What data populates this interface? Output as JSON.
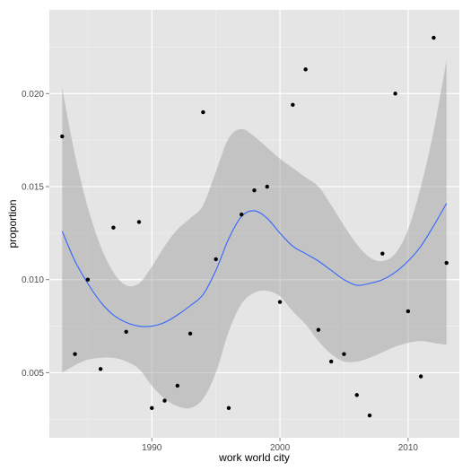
{
  "chart_data": {
    "type": "scatter",
    "title": "",
    "xlabel": "work world city",
    "ylabel": "proportion",
    "xlim": [
      1982.0,
      2014.0
    ],
    "ylim": [
      0.0015,
      0.0245
    ],
    "x_ticks": [
      1990,
      2000,
      2010
    ],
    "x_tick_labels": [
      "1990",
      "2000",
      "2010"
    ],
    "y_ticks": [
      0.005,
      0.01,
      0.015,
      0.02
    ],
    "y_tick_labels": [
      "0.005",
      "0.010",
      "0.015",
      "0.020"
    ],
    "grid": true,
    "legend": "none",
    "points": {
      "x": [
        1983,
        1984,
        1985,
        1986,
        1987,
        1988,
        1989,
        1990,
        1991,
        1992,
        1993,
        1994,
        1995,
        1996,
        1997,
        1998,
        1999,
        2000,
        2001,
        2002,
        2003,
        2004,
        2005,
        2006,
        2007,
        2008,
        2009,
        2010,
        2011,
        2012,
        2013
      ],
      "y": [
        0.0177,
        0.006,
        0.01,
        0.0052,
        0.0128,
        0.0072,
        0.0131,
        0.0031,
        0.0035,
        0.0043,
        0.0071,
        0.019,
        0.0111,
        0.0031,
        0.0135,
        0.0148,
        0.015,
        0.0088,
        0.0194,
        0.0213,
        0.0073,
        0.0056,
        0.006,
        0.0038,
        0.0027,
        0.0114,
        0.02,
        0.0083,
        0.0048,
        0.023,
        0.0109
      ]
    },
    "smooth": {
      "x": [
        1983,
        1984,
        1985,
        1986,
        1987,
        1988,
        1989,
        1990,
        1991,
        1992,
        1993,
        1994,
        1995,
        1996,
        1997,
        1998,
        1999,
        2000,
        2001,
        2002,
        2003,
        2004,
        2005,
        2006,
        2007,
        2008,
        2009,
        2010,
        2011,
        2012,
        2013
      ],
      "y": [
        0.0126,
        0.011,
        0.0098,
        0.0088,
        0.0081,
        0.0077,
        0.0075,
        0.0075,
        0.0077,
        0.0081,
        0.0086,
        0.0092,
        0.0105,
        0.0122,
        0.0134,
        0.0137,
        0.0133,
        0.0125,
        0.0118,
        0.0114,
        0.011,
        0.0105,
        0.01,
        0.0097,
        0.0098,
        0.01,
        0.0104,
        0.011,
        0.0118,
        0.0129,
        0.0141
      ],
      "ymin": [
        0.005,
        0.0054,
        0.0057,
        0.0058,
        0.0058,
        0.0056,
        0.0052,
        0.0043,
        0.0036,
        0.0032,
        0.0031,
        0.0036,
        0.005,
        0.0072,
        0.0087,
        0.0093,
        0.0094,
        0.0091,
        0.0083,
        0.0076,
        0.0067,
        0.006,
        0.0056,
        0.0056,
        0.0058,
        0.0061,
        0.0064,
        0.0066,
        0.0067,
        0.0066,
        0.0065
      ],
      "ymax": [
        0.0203,
        0.0167,
        0.0139,
        0.0118,
        0.0104,
        0.0097,
        0.0098,
        0.0107,
        0.0118,
        0.0127,
        0.0133,
        0.014,
        0.0158,
        0.0176,
        0.0181,
        0.0177,
        0.0171,
        0.0165,
        0.016,
        0.0155,
        0.015,
        0.014,
        0.0129,
        0.0119,
        0.0112,
        0.011,
        0.0114,
        0.0127,
        0.015,
        0.018,
        0.0218
      ]
    },
    "colors": {
      "panel": "#e5e5e5",
      "grid_major": "#ffffff",
      "grid_minor": "#f2f2f2",
      "point": "#000000",
      "line": "#3366ff",
      "ribbon": "#999999",
      "tick_text": "#4d4d4d"
    }
  }
}
